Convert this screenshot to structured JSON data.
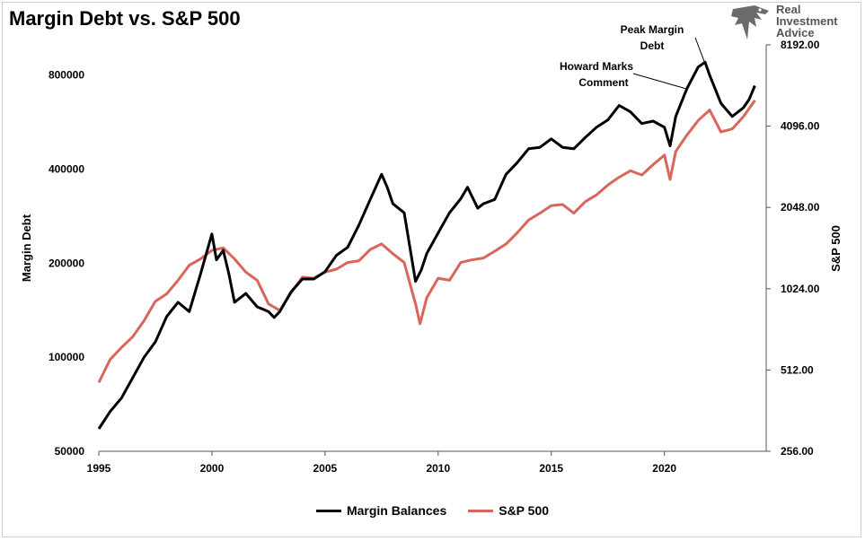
{
  "title": "Margin Debt vs. S&P 500",
  "logo": {
    "line1": "Real",
    "line2": "Investment",
    "line3": "Advice"
  },
  "colors": {
    "margin": "#000000",
    "sp500": "#d9655b",
    "axis": "#555555"
  },
  "chart_data": {
    "type": "line",
    "title": "Margin Debt vs. S&P 500",
    "xlabel": "",
    "ylabel_left": "Margin Debt",
    "ylabel_right": "S&P 500",
    "xlim": [
      1995,
      2024.5
    ],
    "ylim_left": [
      50000,
      1000000
    ],
    "ylim_right": [
      256,
      8192
    ],
    "left_scale": "log",
    "right_scale": "log2",
    "x_ticks": [
      1995,
      2000,
      2005,
      2010,
      2015,
      2020
    ],
    "x_tick_labels": [
      "1995",
      "2000",
      "2005",
      "2010",
      "2015",
      "2020"
    ],
    "left_ticks": [
      50000,
      100000,
      200000,
      400000,
      800000
    ],
    "left_tick_labels": [
      "50000",
      "100000",
      "200000",
      "400000",
      "800000"
    ],
    "right_ticks": [
      256,
      512,
      1024,
      2048,
      4096,
      8192
    ],
    "right_tick_labels": [
      "256.00",
      "512.00",
      "1024.00",
      "2048.00",
      "4096.00",
      "8192.00"
    ],
    "grid": false,
    "legend_position": "bottom",
    "series": [
      {
        "name": "Margin Balances",
        "axis": "left",
        "x": [
          1995.0,
          1995.5,
          1996.0,
          1996.5,
          1997.0,
          1997.5,
          1998.0,
          1998.5,
          1999.0,
          1999.5,
          2000.0,
          2000.2,
          2000.5,
          2000.75,
          2001.0,
          2001.5,
          2002.0,
          2002.5,
          2002.75,
          2003.0,
          2003.5,
          2004.0,
          2004.5,
          2005.0,
          2005.5,
          2006.0,
          2006.5,
          2007.0,
          2007.5,
          2007.75,
          2008.0,
          2008.5,
          2009.0,
          2009.25,
          2009.5,
          2010.0,
          2010.5,
          2011.0,
          2011.3,
          2011.75,
          2012.0,
          2012.5,
          2013.0,
          2013.5,
          2014.0,
          2014.5,
          2015.0,
          2015.5,
          2016.0,
          2016.5,
          2017.0,
          2017.5,
          2018.0,
          2018.5,
          2019.0,
          2019.5,
          2020.0,
          2020.25,
          2020.5,
          2021.0,
          2021.5,
          2021.8,
          2022.0,
          2022.5,
          2023.0,
          2023.5,
          2023.75,
          2024.0
        ],
        "values": [
          59000,
          67000,
          74000,
          86000,
          100000,
          112000,
          135000,
          150000,
          140000,
          185000,
          248000,
          205000,
          220000,
          185000,
          150000,
          160000,
          145000,
          140000,
          134000,
          140000,
          162000,
          178000,
          178000,
          188000,
          212000,
          225000,
          265000,
          320000,
          385000,
          350000,
          310000,
          290000,
          175000,
          190000,
          215000,
          250000,
          290000,
          322000,
          350000,
          300000,
          310000,
          320000,
          385000,
          420000,
          465000,
          470000,
          500000,
          470000,
          465000,
          505000,
          545000,
          575000,
          640000,
          610000,
          560000,
          570000,
          545000,
          475000,
          590000,
          725000,
          850000,
          880000,
          800000,
          650000,
          590000,
          630000,
          670000,
          740000
        ]
      },
      {
        "name": "S&P 500",
        "axis": "right",
        "x": [
          1995.0,
          1995.5,
          1996.0,
          1996.5,
          1997.0,
          1997.5,
          1998.0,
          1998.5,
          1999.0,
          1999.5,
          2000.0,
          2000.5,
          2001.0,
          2001.5,
          2002.0,
          2002.5,
          2003.0,
          2003.5,
          2004.0,
          2004.5,
          2005.0,
          2005.5,
          2006.0,
          2006.5,
          2007.0,
          2007.5,
          2008.0,
          2008.5,
          2009.0,
          2009.2,
          2009.5,
          2010.0,
          2010.5,
          2011.0,
          2011.5,
          2012.0,
          2012.5,
          2013.0,
          2013.5,
          2014.0,
          2014.5,
          2015.0,
          2015.5,
          2016.0,
          2016.5,
          2017.0,
          2017.5,
          2018.0,
          2018.5,
          2019.0,
          2019.5,
          2020.0,
          2020.25,
          2020.5,
          2021.0,
          2021.5,
          2022.0,
          2022.5,
          2023.0,
          2023.5,
          2024.0
        ],
        "values": [
          460,
          560,
          620,
          680,
          780,
          920,
          980,
          1100,
          1250,
          1320,
          1420,
          1450,
          1320,
          1180,
          1100,
          900,
          850,
          990,
          1130,
          1120,
          1180,
          1210,
          1280,
          1300,
          1430,
          1500,
          1380,
          1280,
          900,
          760,
          950,
          1120,
          1100,
          1280,
          1310,
          1330,
          1410,
          1500,
          1650,
          1840,
          1950,
          2080,
          2100,
          1950,
          2150,
          2280,
          2480,
          2650,
          2800,
          2700,
          2950,
          3200,
          2600,
          3300,
          3800,
          4300,
          4700,
          3900,
          4000,
          4450,
          5100
        ]
      }
    ],
    "annotations": [
      {
        "text_lines": [
          "Peak Margin",
          "Debt"
        ],
        "x": 2021.8,
        "y": 880000,
        "axis": "left"
      },
      {
        "text_lines": [
          "Howard Marks",
          "Comment"
        ],
        "x": 2021.0,
        "y": 725000,
        "axis": "left"
      }
    ]
  }
}
